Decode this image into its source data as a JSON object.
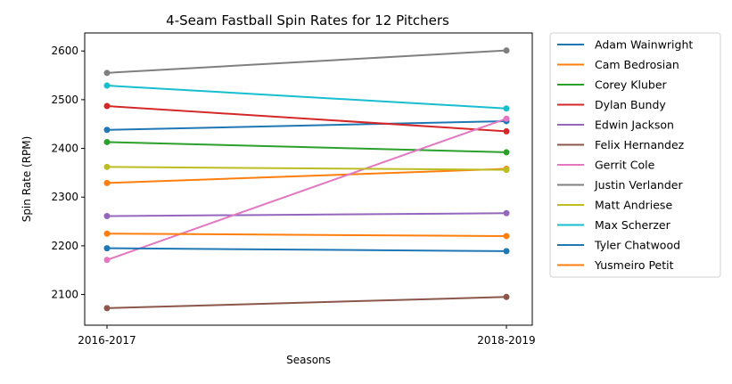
{
  "chart_data": {
    "type": "line",
    "title": "4-Seam Fastball Spin Rates for 12 Pitchers",
    "xlabel": "Seasons",
    "ylabel": "Spin Rate (RPM)",
    "categories": [
      "2016-2017",
      "2018-2019"
    ],
    "ylim": [
      2037,
      2637
    ],
    "yticks": [
      2100,
      2200,
      2300,
      2400,
      2500,
      2600
    ],
    "grid": false,
    "legend_position": "outside-right",
    "series": [
      {
        "name": "Adam Wainwright",
        "values": [
          2438,
          2456
        ],
        "color": "#1f77b4"
      },
      {
        "name": "Cam Bedrosian",
        "values": [
          2329,
          2358
        ],
        "color": "#ff7f0e"
      },
      {
        "name": "Corey Kluber",
        "values": [
          2413,
          2392
        ],
        "color": "#2ca02c"
      },
      {
        "name": "Dylan Bundy",
        "values": [
          2487,
          2435
        ],
        "color": "#d62728"
      },
      {
        "name": "Edwin Jackson",
        "values": [
          2261,
          2267
        ],
        "color": "#9467bd"
      },
      {
        "name": "Felix Hernandez",
        "values": [
          2072,
          2095
        ],
        "color": "#8c564b"
      },
      {
        "name": "Gerrit Cole",
        "values": [
          2171,
          2461
        ],
        "color": "#e377c2"
      },
      {
        "name": "Justin Verlander",
        "values": [
          2555,
          2601
        ],
        "color": "#7f7f7f"
      },
      {
        "name": "Matt Andriese",
        "values": [
          2362,
          2356
        ],
        "color": "#bcbd22"
      },
      {
        "name": "Max Scherzer",
        "values": [
          2529,
          2482
        ],
        "color": "#17becf"
      },
      {
        "name": "Tyler Chatwood",
        "values": [
          2195,
          2189
        ],
        "color": "#1f77b4"
      },
      {
        "name": "Yusmeiro Petit",
        "values": [
          2225,
          2220
        ],
        "color": "#ff7f0e"
      }
    ]
  }
}
